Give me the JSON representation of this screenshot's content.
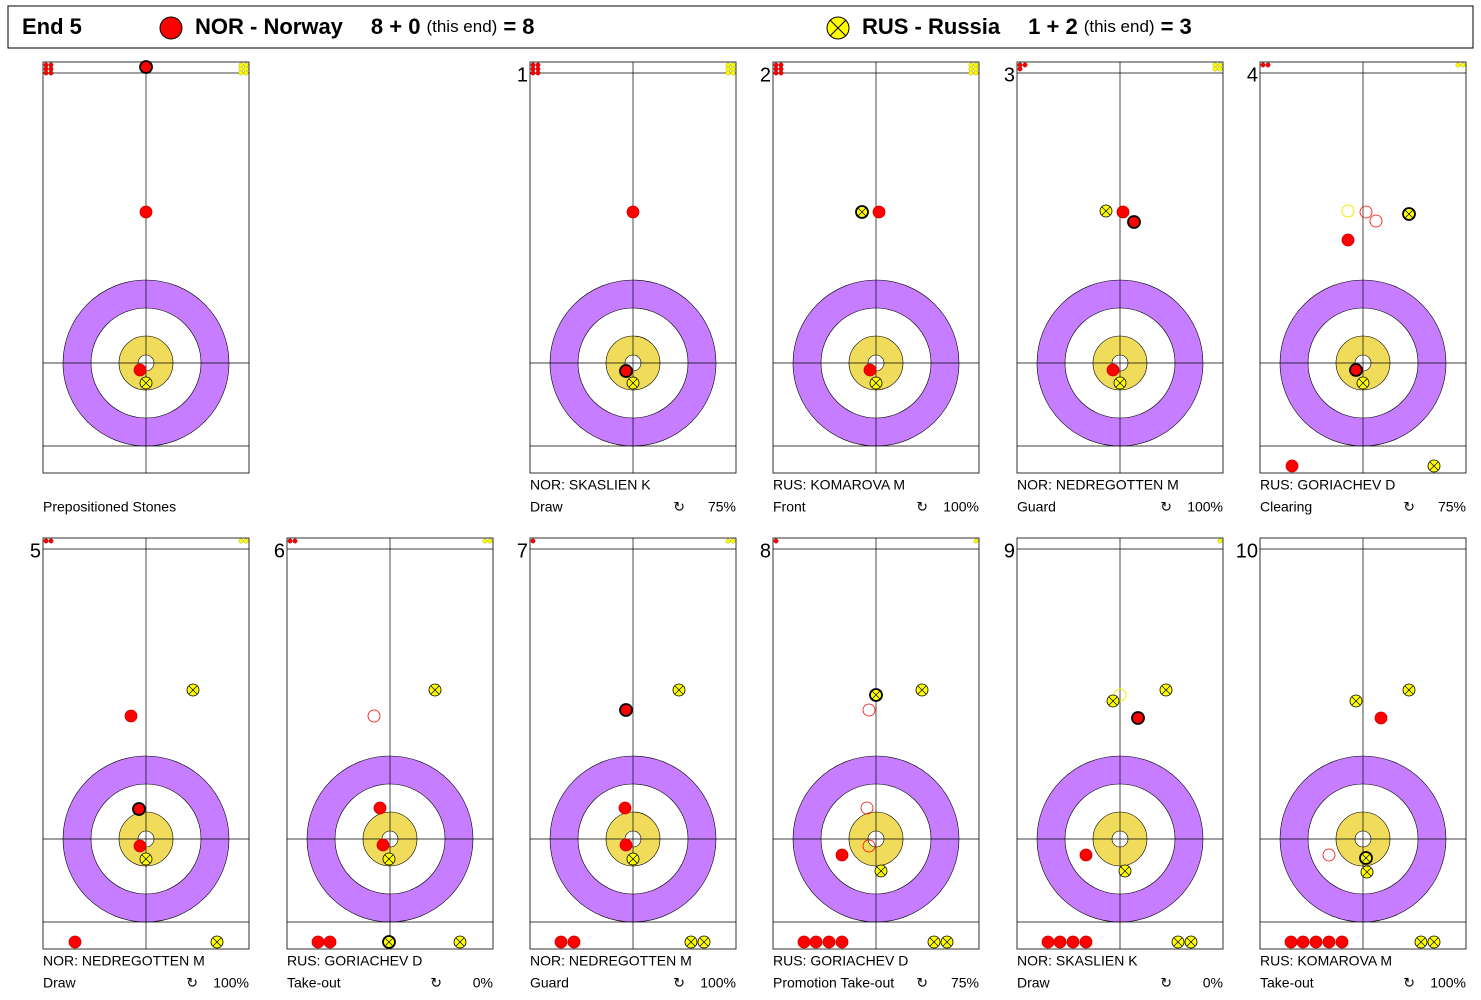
{
  "header": {
    "end": "End 5",
    "teams": [
      {
        "name": "NOR - Norway",
        "score": "8 + 0",
        "note": "(this end)",
        "total": "= 8"
      },
      {
        "name": "RUS - Russia",
        "score": "1 + 2",
        "note": "(this end)",
        "total": "= 3"
      }
    ]
  },
  "panels": [
    {
      "caption": "Prepositioned Stones"
    },
    {
      "number": "1",
      "player": "NOR: SKASLIEN K",
      "shot": "Draw",
      "rotation": "↻",
      "percent": "75%"
    },
    {
      "number": "2",
      "player": "RUS: KOMAROVA M",
      "shot": "Front",
      "rotation": "↻",
      "percent": "100%"
    },
    {
      "number": "3",
      "player": "NOR: NEDREGOTTEN M",
      "shot": "Guard",
      "rotation": "↻",
      "percent": "100%"
    },
    {
      "number": "4",
      "player": "RUS: GORIACHEV D",
      "shot": "Clearing",
      "rotation": "↻",
      "percent": "75%"
    },
    {
      "number": "5",
      "player": "NOR: NEDREGOTTEN M",
      "shot": "Draw",
      "rotation": "↻",
      "percent": "100%"
    },
    {
      "number": "6",
      "player": "RUS: GORIACHEV D",
      "shot": "Take-out",
      "rotation": "↻",
      "percent": "0%"
    },
    {
      "number": "7",
      "player": "NOR: NEDREGOTTEN M",
      "shot": "Guard",
      "rotation": "↻",
      "percent": "100%"
    },
    {
      "number": "8",
      "player": "RUS: GORIACHEV D",
      "shot": "Promotion Take-out",
      "rotation": "↻",
      "percent": "75%"
    },
    {
      "number": "9",
      "player": "NOR: SKASLIEN K",
      "shot": "Draw",
      "rotation": "↻",
      "percent": "0%"
    },
    {
      "number": "10",
      "player": "RUS: KOMAROVA M",
      "shot": "Take-out",
      "rotation": "↻",
      "percent": "100%"
    }
  ]
}
